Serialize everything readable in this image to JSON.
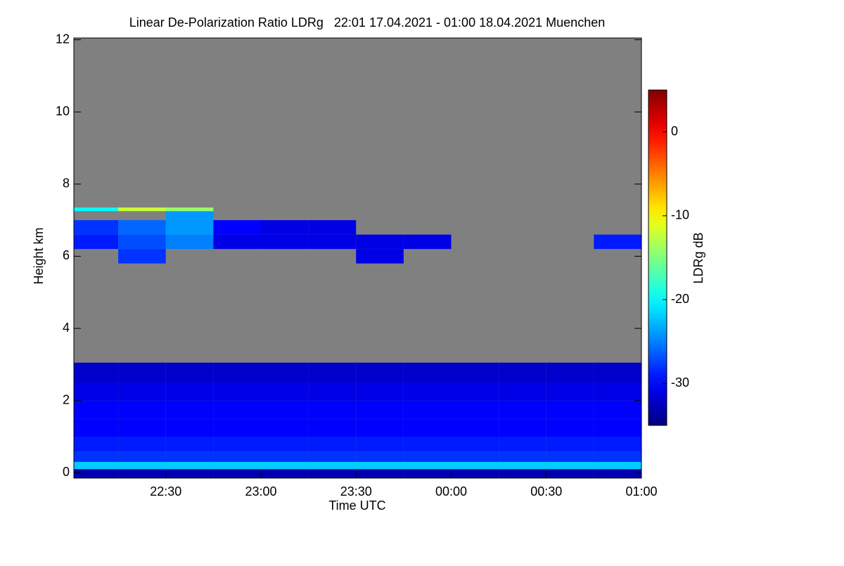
{
  "chart_data": {
    "type": "heatmap",
    "title": "Linear De-Polarization Ratio LDRg   22:01 17.04.2021 - 01:00 18.04.2021 Muenchen",
    "x_label": "Time UTC",
    "y_label": "Height km",
    "colorbar_label": "LDRg dB",
    "colormap": "jet",
    "background_color": "#808080",
    "xlim": [
      22.0167,
      25.0
    ],
    "xticks": [
      {
        "value": 22.5,
        "label": "22:30"
      },
      {
        "value": 23.0,
        "label": "23:00"
      },
      {
        "value": 23.5,
        "label": "23:30"
      },
      {
        "value": 24.0,
        "label": "00:00"
      },
      {
        "value": 24.5,
        "label": "00:30"
      },
      {
        "value": 25.0,
        "label": "01:00"
      }
    ],
    "ylim": [
      -0.15,
      12.05
    ],
    "yticks": [
      0,
      2,
      4,
      6,
      8,
      10,
      12
    ],
    "clim": [
      -35,
      5
    ],
    "cticks": [
      0,
      -10,
      -20,
      -30
    ],
    "x_edges": [
      22.0167,
      22.25,
      22.5,
      22.75,
      23.0,
      23.25,
      23.5,
      23.75,
      24.0,
      24.25,
      24.5,
      24.75,
      25.0
    ],
    "y_edges": [
      -0.15,
      0.1,
      0.3,
      0.6,
      1.0,
      1.5,
      2.0,
      2.5,
      3.05,
      5.8,
      6.2,
      6.6,
      7.0,
      7.25,
      7.35,
      12.05
    ],
    "z": [
      [
        -33,
        -33,
        -33,
        -33,
        -33,
        -33,
        -33,
        -33,
        -33,
        -33,
        -33,
        -33
      ],
      [
        -22,
        -22,
        -22,
        -22,
        -22,
        -22,
        -22,
        -22,
        -22,
        -22,
        -22,
        -22
      ],
      [
        -28,
        -28,
        -28,
        -28,
        -28,
        -28,
        -28,
        -28,
        -28,
        -28,
        -28,
        -28
      ],
      [
        -29,
        -29,
        -29,
        -29,
        -29,
        -29,
        -29,
        -29,
        -29,
        -29,
        -29,
        -29
      ],
      [
        -30,
        -30,
        -30,
        -30,
        -30,
        -30,
        -30,
        -30,
        -30,
        -30,
        -30,
        -30
      ],
      [
        -30,
        -30,
        -30,
        -30,
        -30,
        -30,
        -30,
        -30,
        -30,
        -30,
        -30,
        -30
      ],
      [
        -31,
        -31,
        -31,
        -31,
        -31,
        -31,
        -31,
        -31,
        -31,
        -31,
        -31,
        -31
      ],
      [
        -32,
        -32,
        -32,
        -32,
        -32,
        -32,
        -32,
        -32,
        -32,
        -32,
        -32,
        -32
      ],
      [
        null,
        null,
        null,
        null,
        null,
        null,
        null,
        null,
        null,
        null,
        null,
        null
      ],
      [
        null,
        -28,
        null,
        null,
        null,
        null,
        -31,
        null,
        null,
        null,
        null,
        null
      ],
      [
        -29,
        -27,
        -25,
        -31,
        -31,
        -31,
        -31,
        -31,
        null,
        null,
        null,
        -29
      ],
      [
        -28,
        -26,
        -24,
        -30,
        -31,
        -31,
        null,
        null,
        null,
        null,
        null,
        null
      ],
      [
        null,
        null,
        -24,
        null,
        null,
        null,
        null,
        null,
        null,
        null,
        null,
        null
      ],
      [
        -20,
        -12,
        -14,
        null,
        null,
        null,
        null,
        null,
        null,
        null,
        null,
        null
      ],
      [
        null,
        null,
        null,
        null,
        null,
        null,
        null,
        null,
        null,
        null,
        null,
        null
      ]
    ]
  }
}
